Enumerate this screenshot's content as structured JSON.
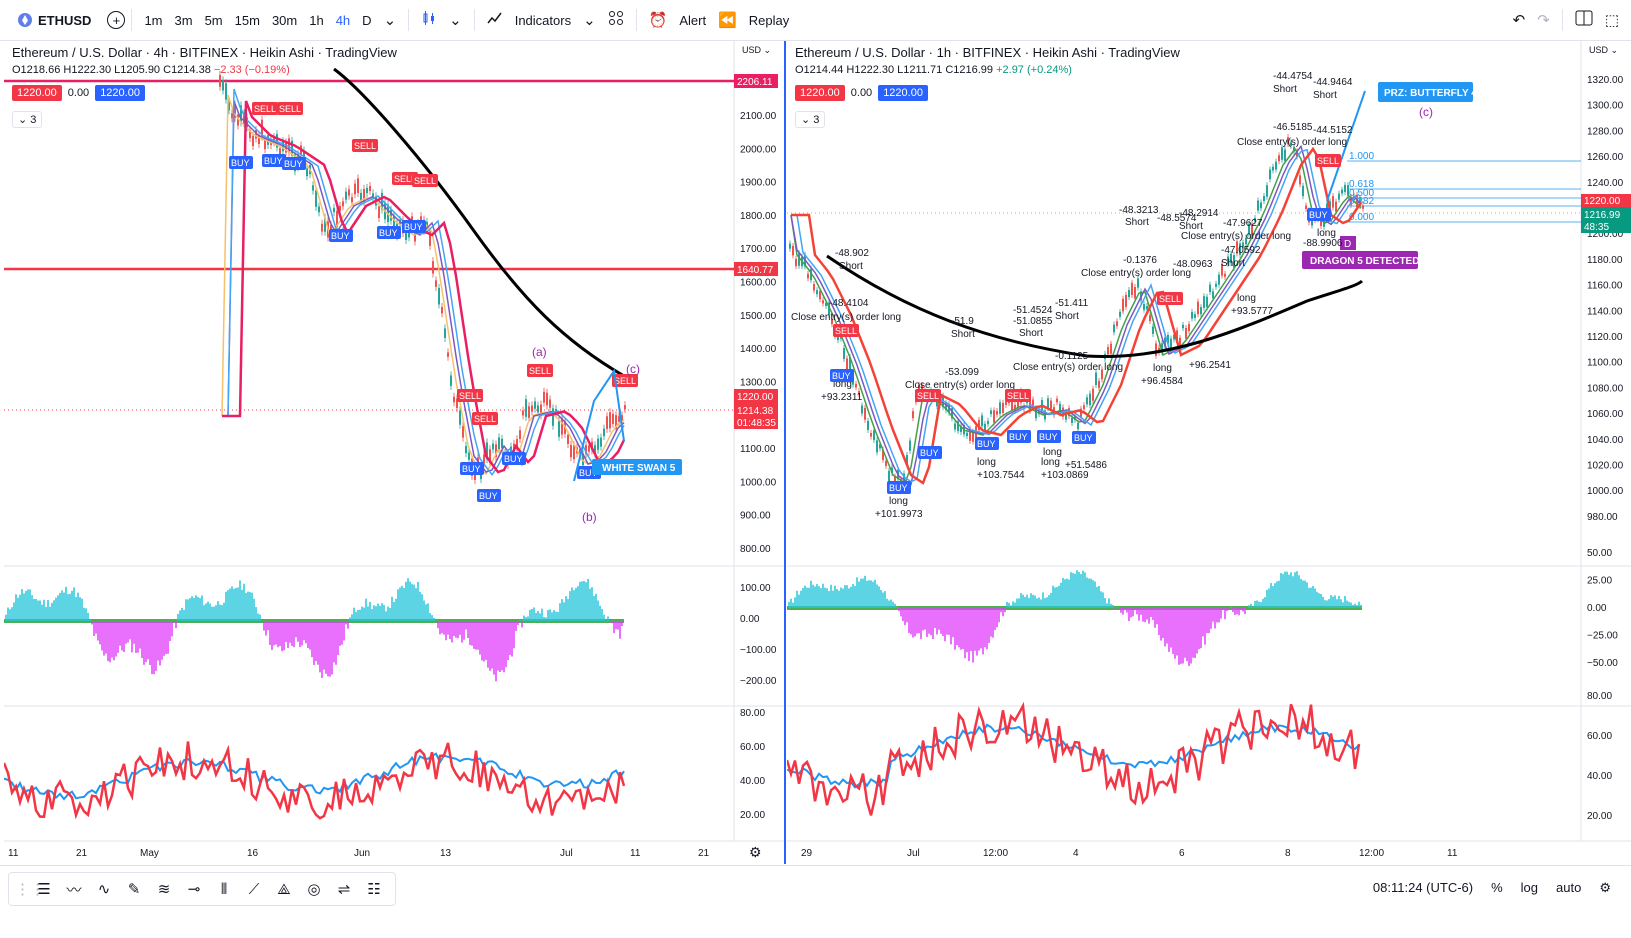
{
  "toolbar": {
    "symbol": "ETHUSD",
    "timeframes": [
      "1m",
      "3m",
      "5m",
      "15m",
      "30m",
      "1h",
      "4h",
      "D"
    ],
    "active_timeframe": "4h",
    "indicators_label": "Indicators",
    "alert_label": "Alert",
    "replay_label": "Replay"
  },
  "left_chart": {
    "title": "Ethereum / U.S. Dollar · 4h · BITFINEX · Heikin Ashi · TradingView",
    "ohlc": {
      "o": "O1218.66",
      "h": "H1222.30",
      "l": "L1205.90",
      "c": "C1214.38",
      "chg": "−2.33 (−0.19%)"
    },
    "bid": "1220.00",
    "spread": "0.00",
    "ask": "1220.00",
    "collapse": "3",
    "currency": "USD",
    "price_ticks": [
      "2100.00",
      "2000.00",
      "1900.00",
      "1800.00",
      "1700.00",
      "1600.00",
      "1500.00",
      "1400.00",
      "1300.00",
      "1200.00",
      "1100.00",
      "1000.00",
      "900.00",
      "800.00"
    ],
    "osc1_ticks": [
      "100.00",
      "0.00",
      "−100.00",
      "−200.00"
    ],
    "osc2_ticks": [
      "80.00",
      "60.00",
      "40.00",
      "20.00"
    ],
    "time_ticks": [
      "11",
      "21",
      "May",
      "16",
      "Jun",
      "13",
      "Jul",
      "11",
      "21"
    ],
    "level_labels": [
      "2206.11",
      "1640.77"
    ],
    "price_labels": [
      "1220.00",
      "1214.38",
      "01:48:35"
    ],
    "wave_labels": [
      "(a)",
      "(b)",
      "(c)"
    ],
    "pattern_label": "WHITE SWAN 5",
    "signals": {
      "sell": "SELL",
      "buy": "BUY"
    }
  },
  "right_chart": {
    "title": "Ethereum / U.S. Dollar · 1h · BITFINEX · Heikin Ashi · TradingView",
    "ohlc": {
      "o": "O1214.44",
      "h": "H1222.30",
      "l": "L1211.71",
      "c": "C1216.99",
      "chg": "+2.97 (+0.24%)"
    },
    "bid": "1220.00",
    "spread": "0.00",
    "ask": "1220.00",
    "collapse": "3",
    "currency": "USD",
    "price_ticks": [
      "1320.00",
      "1300.00",
      "1280.00",
      "1260.00",
      "1240.00",
      "1220.00",
      "1200.00",
      "1180.00",
      "1160.00",
      "1140.00",
      "1120.00",
      "1100.00",
      "1080.00",
      "1060.00",
      "1040.00",
      "1020.00",
      "1000.00",
      "980.00"
    ],
    "osc1_ticks": [
      "50.00",
      "25.00",
      "0.00",
      "−25.00",
      "−50.00"
    ],
    "osc2_ticks": [
      "80.00",
      "60.00",
      "40.00",
      "20.00"
    ],
    "time_ticks": [
      "29",
      "Jul",
      "12:00",
      "4",
      "6",
      "8",
      "12:00",
      "11"
    ],
    "price_labels": [
      "1220.00",
      "1216.99",
      "48:35"
    ],
    "fib_labels": [
      "1.000",
      "0.618",
      "0.500",
      "0.382",
      "0.000"
    ],
    "prz_label": "PRZ: BUTTERFLY 4",
    "dragon_label": "DRAGON 5 DETECTED",
    "wave_label": "(c)",
    "point_label": "D",
    "annotations": [
      {
        "t": "-48.902"
      },
      {
        "t": "Short"
      },
      {
        "t": "-48.4104"
      },
      {
        "t": "Close entry(s) order long"
      },
      {
        "t": "long"
      },
      {
        "t": "+93.2311"
      },
      {
        "t": "long"
      },
      {
        "t": "+101.9973"
      },
      {
        "t": "-51.9"
      },
      {
        "t": "Short"
      },
      {
        "t": "-53.099"
      },
      {
        "t": "Close entry(s) order long"
      },
      {
        "t": "long"
      },
      {
        "t": "+103.7544"
      },
      {
        "t": "long"
      },
      {
        "t": "+103.0869"
      },
      {
        "t": "-51.4524"
      },
      {
        "t": "-51.0855"
      },
      {
        "t": "Short"
      },
      {
        "t": "-51.411"
      },
      {
        "t": "Short"
      },
      {
        "t": "Close entry(s) order long"
      },
      {
        "t": "-0.1125"
      },
      {
        "t": "long"
      },
      {
        "t": "+51.5486"
      },
      {
        "t": "-48.3213"
      },
      {
        "t": "Short"
      },
      {
        "t": "-48.5574"
      },
      {
        "t": "-48.2914"
      },
      {
        "t": "Short"
      },
      {
        "t": "-0.1376"
      },
      {
        "t": "Close entry(s) order long"
      },
      {
        "t": "-48.0963"
      },
      {
        "t": "long"
      },
      {
        "t": "+96.4584"
      },
      {
        "t": "+96.2541"
      },
      {
        "t": "-47.0592"
      },
      {
        "t": "Short"
      },
      {
        "t": "-47.9627"
      },
      {
        "t": "Close entry(s) order long"
      },
      {
        "t": "long"
      },
      {
        "t": "+93.5777"
      },
      {
        "t": "-44.4754"
      },
      {
        "t": "Short"
      },
      {
        "t": "-44.9464"
      },
      {
        "t": "Short"
      },
      {
        "t": "-46.5185"
      },
      {
        "t": "-44.5152"
      },
      {
        "t": "Close entry(s) order long"
      },
      {
        "t": "long"
      },
      {
        "t": "-88.9906"
      }
    ],
    "signals": {
      "sell": "SELL",
      "buy": "BUY"
    }
  },
  "bottom": {
    "time": "08:11:24 (UTC-6)",
    "percent": "%",
    "log": "log",
    "auto": "auto"
  }
}
